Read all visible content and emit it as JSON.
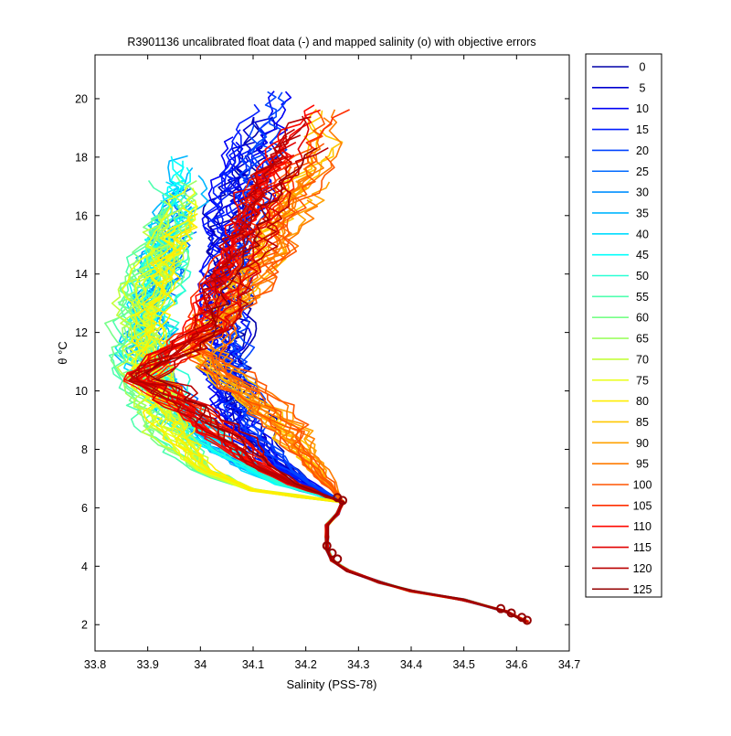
{
  "chart_data": {
    "type": "line",
    "title": "R3901136 uncalibrated float data (-) and mapped salinity (o) with objective errors",
    "xlabel": "Salinity (PSS-78)",
    "ylabel": "θ °C",
    "xlim": [
      33.8,
      34.7
    ],
    "ylim": [
      1.1,
      21.5
    ],
    "x_ticks": [
      "33.8",
      "33.9",
      "34",
      "34.1",
      "34.2",
      "34.3",
      "34.4",
      "34.5",
      "34.6",
      "34.7"
    ],
    "y_ticks": [
      "2",
      "4",
      "6",
      "8",
      "10",
      "12",
      "14",
      "16",
      "18",
      "20"
    ],
    "grid": false,
    "legend_position": "right-outside",
    "colormap": "jet",
    "legend": [
      "0",
      "5",
      "10",
      "15",
      "20",
      "25",
      "30",
      "35",
      "40",
      "45",
      "50",
      "55",
      "60",
      "65",
      "70",
      "75",
      "80",
      "85",
      "90",
      "95",
      "100",
      "105",
      "110",
      "115",
      "120",
      "125"
    ],
    "common_deep_profile": [
      [
        34.62,
        2.1
      ],
      [
        34.58,
        2.45
      ],
      [
        34.5,
        2.85
      ],
      [
        34.4,
        3.15
      ],
      [
        34.34,
        3.45
      ],
      [
        34.28,
        3.85
      ],
      [
        34.25,
        4.2
      ],
      [
        34.24,
        4.6
      ],
      [
        34.24,
        5.0
      ],
      [
        34.24,
        5.4
      ],
      [
        34.26,
        5.8
      ],
      [
        34.27,
        6.2
      ]
    ],
    "upper_anchor_profiles": {
      "group_0_20": [
        [
          34.27,
          6.2
        ],
        [
          34.21,
          6.8
        ],
        [
          34.15,
          7.5
        ],
        [
          34.09,
          8.6
        ],
        [
          34.06,
          9.8
        ],
        [
          34.05,
          11.2
        ],
        [
          34.04,
          12.5
        ],
        [
          34.05,
          14.0
        ],
        [
          34.06,
          15.5
        ],
        [
          34.08,
          17.2
        ],
        [
          34.11,
          18.8
        ],
        [
          34.14,
          20.5
        ]
      ],
      "group_25_50": [
        [
          34.27,
          6.2
        ],
        [
          34.14,
          6.9
        ],
        [
          34.05,
          7.9
        ],
        [
          33.97,
          9.0
        ],
        [
          33.92,
          10.2
        ],
        [
          33.9,
          11.2
        ],
        [
          33.9,
          12.5
        ],
        [
          33.92,
          14.0
        ],
        [
          33.94,
          15.5
        ],
        [
          33.97,
          17.0
        ],
        [
          34.0,
          18.2
        ]
      ],
      "group_55_80": [
        [
          34.27,
          6.2
        ],
        [
          34.1,
          6.6
        ],
        [
          34.0,
          7.3
        ],
        [
          33.95,
          8.3
        ],
        [
          33.91,
          9.5
        ],
        [
          33.89,
          10.8
        ],
        [
          33.88,
          12.0
        ],
        [
          33.89,
          13.2
        ],
        [
          33.92,
          14.6
        ],
        [
          33.95,
          16.0
        ],
        [
          33.97,
          17.5
        ]
      ],
      "group_85_100": [
        [
          34.27,
          6.2
        ],
        [
          34.24,
          6.9
        ],
        [
          34.2,
          7.8
        ],
        [
          34.16,
          8.8
        ],
        [
          34.1,
          9.8
        ],
        [
          34.03,
          10.8
        ],
        [
          34.0,
          11.5
        ],
        [
          34.03,
          12.3
        ],
        [
          34.09,
          13.6
        ],
        [
          34.14,
          15.0
        ],
        [
          34.18,
          16.5
        ],
        [
          34.22,
          18.0
        ],
        [
          34.26,
          19.8
        ]
      ],
      "group_105_125": [
        [
          34.27,
          6.2
        ],
        [
          34.18,
          6.8
        ],
        [
          34.1,
          7.6
        ],
        [
          34.05,
          8.5
        ],
        [
          33.99,
          9.4
        ],
        [
          33.93,
          10.2
        ],
        [
          33.88,
          10.4
        ],
        [
          33.95,
          11.2
        ],
        [
          34.03,
          12.3
        ],
        [
          34.06,
          13.8
        ],
        [
          34.1,
          15.5
        ],
        [
          34.14,
          17.2
        ],
        [
          34.2,
          18.8
        ],
        [
          34.27,
          20.2
        ]
      ]
    },
    "mapped_salinity_markers": [
      [
        34.57,
        2.55
      ],
      [
        34.59,
        2.4
      ],
      [
        34.61,
        2.25
      ],
      [
        34.62,
        2.15
      ],
      [
        34.24,
        4.7
      ],
      [
        34.25,
        4.45
      ],
      [
        34.26,
        4.25
      ],
      [
        34.27,
        6.25
      ],
      [
        34.26,
        6.35
      ]
    ]
  }
}
